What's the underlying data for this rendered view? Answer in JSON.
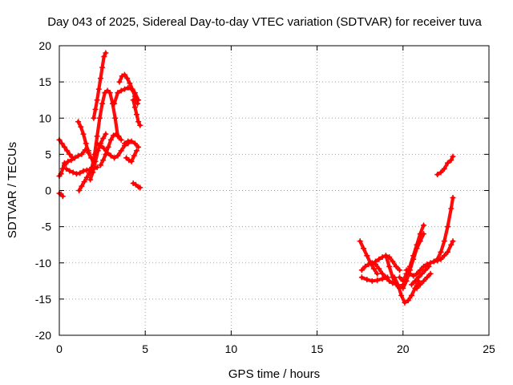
{
  "chart_data": {
    "type": "scatter",
    "title": "Day 043 of 2025, Sidereal Day-to-day VTEC variation (SDTVAR) for receiver tuva",
    "xlabel": "GPS time / hours",
    "ylabel": "SDTVAR / TECUs",
    "xlim": [
      0,
      25
    ],
    "ylim": [
      -20,
      20
    ],
    "xticks": [
      "0",
      "5",
      "10",
      "15",
      "20",
      "25"
    ],
    "yticks": [
      "20",
      "15",
      "10",
      "5",
      "0",
      "-5",
      "-10",
      "-15",
      "-20"
    ],
    "grid": true,
    "marker": "plus",
    "color": "#ff0000",
    "series": [
      {
        "name": "s1",
        "x": [
          0.0,
          0.15,
          0.3,
          0.45,
          0.6,
          0.75
        ],
        "y": [
          7.0,
          6.5,
          6.0,
          5.5,
          5.0,
          4.6
        ]
      },
      {
        "name": "s2",
        "x": [
          0.0,
          0.1,
          0.2,
          0.3
        ],
        "y": [
          2.0,
          2.3,
          3.0,
          3.8
        ]
      },
      {
        "name": "s3",
        "x": [
          0.0,
          0.1,
          0.2
        ],
        "y": [
          -0.4,
          -0.5,
          -0.8
        ]
      },
      {
        "name": "s4",
        "x": [
          0.3,
          0.5,
          0.7,
          0.9,
          1.1,
          1.3,
          1.5,
          1.7
        ],
        "y": [
          3.5,
          4.0,
          4.2,
          4.5,
          4.8,
          5.0,
          5.6,
          5.5
        ]
      },
      {
        "name": "s5",
        "x": [
          0.4,
          0.6,
          0.8,
          1.0,
          1.2,
          1.4,
          1.6,
          1.8,
          2.0,
          2.2
        ],
        "y": [
          3.0,
          2.7,
          2.5,
          2.3,
          2.4,
          2.7,
          2.8,
          2.9,
          3.0,
          3.2
        ]
      },
      {
        "name": "s6",
        "x": [
          1.1,
          1.25,
          1.4,
          1.55,
          1.7,
          1.85,
          2.0
        ],
        "y": [
          9.5,
          8.8,
          7.8,
          6.5,
          5.2,
          4.5,
          4.0
        ]
      },
      {
        "name": "s7",
        "x": [
          1.15,
          1.3,
          1.45,
          1.6,
          1.75,
          1.9
        ],
        "y": [
          0.0,
          0.6,
          1.2,
          1.8,
          2.4,
          3.0
        ]
      },
      {
        "name": "s8",
        "x": [
          1.8,
          1.95,
          2.1,
          2.25,
          2.4,
          2.55,
          2.7
        ],
        "y": [
          1.5,
          2.5,
          4.0,
          5.5,
          6.5,
          7.2,
          7.8
        ]
      },
      {
        "name": "s9",
        "x": [
          1.9,
          2.05,
          2.2,
          2.35,
          2.5,
          2.65,
          2.8,
          2.95,
          3.1,
          3.25,
          3.4
        ],
        "y": [
          3.2,
          5.0,
          7.5,
          10.0,
          12.0,
          13.5,
          13.8,
          13.5,
          12.0,
          10.0,
          7.5
        ]
      },
      {
        "name": "s10",
        "x": [
          2.0,
          2.1,
          2.2,
          2.3,
          2.4,
          2.5,
          2.6,
          2.7
        ],
        "y": [
          10.0,
          11.2,
          12.5,
          14.0,
          15.5,
          17.0,
          18.5,
          19.0
        ]
      },
      {
        "name": "s11",
        "x": [
          2.2,
          2.4,
          2.6,
          2.8,
          3.0,
          3.2,
          3.4,
          3.6,
          3.8,
          4.0
        ],
        "y": [
          6.5,
          6.2,
          5.8,
          5.2,
          4.8,
          4.5,
          4.8,
          5.5,
          6.2,
          6.5
        ]
      },
      {
        "name": "s12",
        "x": [
          2.4,
          2.55,
          2.7,
          2.85,
          3.0,
          3.15,
          3.3,
          3.45,
          3.6
        ],
        "y": [
          3.5,
          4.2,
          5.0,
          6.0,
          7.0,
          7.6,
          7.8,
          7.5,
          7.0
        ]
      },
      {
        "name": "s13",
        "x": [
          3.2,
          3.4,
          3.6,
          3.8,
          4.0,
          4.2,
          4.4,
          4.6
        ],
        "y": [
          12.0,
          13.5,
          13.8,
          14.0,
          14.2,
          14.0,
          13.5,
          12.5
        ]
      },
      {
        "name": "s14",
        "x": [
          3.5,
          3.65,
          3.8,
          3.95,
          4.1,
          4.25,
          4.4,
          4.55
        ],
        "y": [
          15.0,
          15.8,
          16.0,
          15.5,
          14.8,
          14.0,
          13.0,
          12.0
        ]
      },
      {
        "name": "s15",
        "x": [
          4.3,
          4.4,
          4.5,
          4.6,
          4.7
        ],
        "y": [
          12.5,
          11.5,
          10.5,
          9.5,
          9.0
        ]
      },
      {
        "name": "s16",
        "x": [
          3.8,
          4.0,
          4.2,
          4.4,
          4.6
        ],
        "y": [
          6.5,
          6.8,
          6.8,
          6.5,
          6.0
        ]
      },
      {
        "name": "s17",
        "x": [
          3.9,
          4.05,
          4.2,
          4.35,
          4.5
        ],
        "y": [
          4.5,
          4.2,
          4.0,
          4.8,
          5.5
        ]
      },
      {
        "name": "s18",
        "x": [
          4.3,
          4.45,
          4.6,
          4.7
        ],
        "y": [
          1.0,
          0.8,
          0.5,
          0.4
        ]
      },
      {
        "name": "s19",
        "x": [
          17.5,
          17.7,
          17.9,
          18.1,
          18.3,
          18.5
        ],
        "y": [
          -7.0,
          -8.0,
          -9.0,
          -10.0,
          -10.8,
          -11.5
        ]
      },
      {
        "name": "s20",
        "x": [
          17.6,
          17.8,
          18.0,
          18.2,
          18.4,
          18.6,
          18.8,
          19.0,
          19.2,
          19.4
        ],
        "y": [
          -11.0,
          -10.5,
          -10.2,
          -10.0,
          -10.2,
          -10.8,
          -11.5,
          -12.0,
          -12.5,
          -12.8
        ]
      },
      {
        "name": "s21",
        "x": [
          17.6,
          17.9,
          18.2,
          18.5,
          18.8,
          19.1
        ],
        "y": [
          -12.0,
          -12.3,
          -12.5,
          -12.4,
          -12.2,
          -12.0
        ]
      },
      {
        "name": "s22",
        "x": [
          18.4,
          18.6,
          18.8,
          19.0,
          19.2,
          19.4,
          19.6,
          19.8
        ],
        "y": [
          -9.8,
          -9.5,
          -9.2,
          -9.0,
          -9.2,
          -9.8,
          -10.5,
          -11.0
        ]
      },
      {
        "name": "s23",
        "x": [
          19.0,
          19.2,
          19.4,
          19.6,
          19.8,
          20.0
        ],
        "y": [
          -9.0,
          -10.5,
          -12.0,
          -13.0,
          -13.5,
          -13.0
        ]
      },
      {
        "name": "s24",
        "x": [
          19.5,
          19.7,
          19.9,
          20.1,
          20.3,
          20.5,
          20.7,
          20.9
        ],
        "y": [
          -12.0,
          -13.0,
          -14.5,
          -15.5,
          -15.2,
          -14.5,
          -13.5,
          -12.5
        ]
      },
      {
        "name": "s25",
        "x": [
          19.8,
          20.0,
          20.2,
          20.4,
          20.6,
          20.8,
          21.0,
          21.2
        ],
        "y": [
          -12.0,
          -12.5,
          -11.5,
          -10.5,
          -9.0,
          -7.5,
          -6.0,
          -4.8
        ]
      },
      {
        "name": "s26",
        "x": [
          20.0,
          20.2,
          20.4,
          20.6,
          20.8,
          21.0,
          21.2
        ],
        "y": [
          -13.5,
          -12.5,
          -11.0,
          -9.5,
          -8.0,
          -7.0,
          -6.0
        ]
      },
      {
        "name": "s27",
        "x": [
          20.2,
          20.4,
          20.6,
          20.8,
          21.0,
          21.2,
          21.4,
          21.6,
          21.8,
          22.0
        ],
        "y": [
          -11.0,
          -11.5,
          -11.8,
          -11.5,
          -11.0,
          -10.5,
          -10.2,
          -10.0,
          -9.8,
          -9.5
        ]
      },
      {
        "name": "s28",
        "x": [
          20.5,
          20.7,
          20.9,
          21.1,
          21.3,
          21.5
        ],
        "y": [
          -13.0,
          -12.5,
          -12.0,
          -11.5,
          -11.0,
          -10.5
        ]
      },
      {
        "name": "s29",
        "x": [
          20.8,
          21.0,
          21.2,
          21.4,
          21.6
        ],
        "y": [
          -13.5,
          -13.0,
          -12.5,
          -12.0,
          -11.5
        ]
      },
      {
        "name": "s30",
        "x": [
          21.8,
          22.0,
          22.2,
          22.4,
          22.6,
          22.8,
          22.9
        ],
        "y": [
          -9.8,
          -9.7,
          -9.5,
          -9.0,
          -8.5,
          -7.5,
          -7.0
        ]
      },
      {
        "name": "s31",
        "x": [
          22.0,
          22.2,
          22.4,
          22.6,
          22.8,
          22.9
        ],
        "y": [
          -9.5,
          -8.5,
          -7.0,
          -5.0,
          -2.5,
          -1.0
        ]
      },
      {
        "name": "s32",
        "x": [
          22.0,
          22.2,
          22.4,
          22.6,
          22.8,
          22.9
        ],
        "y": [
          2.2,
          2.5,
          3.0,
          3.8,
          4.2,
          4.7
        ]
      }
    ]
  }
}
